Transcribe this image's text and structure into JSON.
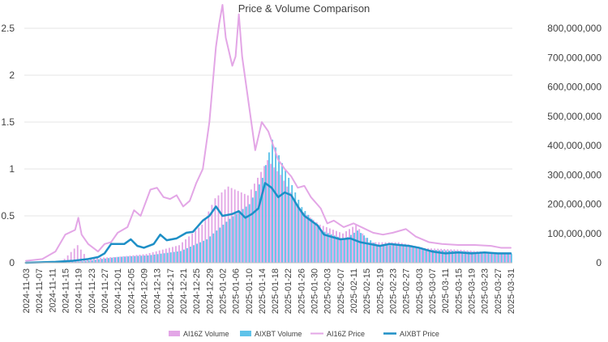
{
  "chart_data": {
    "type": "bar+line",
    "title": "Price & Volume Comparison",
    "xlabel": "",
    "ylabel_left": "",
    "ylabel_right": "",
    "ylim_left": [
      0,
      2.5
    ],
    "yticks_left": [
      "0",
      "0.5",
      "1",
      "1.5",
      "2",
      "2.5"
    ],
    "ylim_right": [
      0,
      800000000
    ],
    "yticks_right": [
      "0",
      "100,000,000",
      "200,000,000",
      "300,000,000",
      "400,000,000",
      "500,000,000",
      "600,000,000",
      "700,000,000",
      "800,000,000"
    ],
    "x_start": "2024-11-03",
    "x_end": "2025-03-31",
    "x_ticks": [
      "2024-11-03",
      "2024-11-07",
      "2024-11-11",
      "2024-11-15",
      "2024-11-19",
      "2024-11-23",
      "2024-11-27",
      "2024-12-01",
      "2024-12-05",
      "2024-12-09",
      "2024-12-13",
      "2024-12-17",
      "2024-12-21",
      "2024-12-25",
      "2024-12-29",
      "2025-01-02",
      "2025-01-06",
      "2025-01-10",
      "2025-01-14",
      "2025-01-18",
      "2025-01-22",
      "2025-01-26",
      "2025-01-30",
      "2025-02-03",
      "2025-02-07",
      "2025-02-11",
      "2025-02-15",
      "2025-02-19",
      "2025-02-23",
      "2025-02-27",
      "2025-03-03",
      "2025-03-07",
      "2025-03-11",
      "2025-03-15",
      "2025-03-19",
      "2025-03-23",
      "2025-03-27",
      "2025-03-31"
    ],
    "grid": true,
    "legend_position": "bottom",
    "series": [
      {
        "name": "AI16Z Volume",
        "kind": "bar",
        "axis": "right",
        "color": "#e3a6e6",
        "anchors": [
          [
            "2024-11-03",
            0
          ],
          [
            "2024-11-14",
            2000000
          ],
          [
            "2024-11-19",
            60000000
          ],
          [
            "2024-11-22",
            15000000
          ],
          [
            "2024-12-01",
            20000000
          ],
          [
            "2024-12-10",
            30000000
          ],
          [
            "2024-12-20",
            60000000
          ],
          [
            "2024-12-27",
            130000000
          ],
          [
            "2024-12-31",
            220000000
          ],
          [
            "2025-01-04",
            260000000
          ],
          [
            "2025-01-10",
            230000000
          ],
          [
            "2025-01-16",
            350000000
          ],
          [
            "2025-01-20",
            300000000
          ],
          [
            "2025-01-26",
            180000000
          ],
          [
            "2025-02-01",
            130000000
          ],
          [
            "2025-02-08",
            100000000
          ],
          [
            "2025-02-12",
            130000000
          ],
          [
            "2025-02-16",
            70000000
          ],
          [
            "2025-02-25",
            70000000
          ],
          [
            "2025-03-05",
            50000000
          ],
          [
            "2025-03-15",
            45000000
          ],
          [
            "2025-03-31",
            30000000
          ]
        ]
      },
      {
        "name": "AIXBT Volume",
        "kind": "bar",
        "axis": "right",
        "color": "#5fc3e9",
        "anchors": [
          [
            "2024-11-03",
            0
          ],
          [
            "2024-11-20",
            5000000
          ],
          [
            "2024-12-01",
            20000000
          ],
          [
            "2024-12-10",
            25000000
          ],
          [
            "2024-12-20",
            40000000
          ],
          [
            "2024-12-28",
            80000000
          ],
          [
            "2025-01-04",
            150000000
          ],
          [
            "2025-01-10",
            200000000
          ],
          [
            "2025-01-14",
            290000000
          ],
          [
            "2025-01-17",
            420000000
          ],
          [
            "2025-01-20",
            340000000
          ],
          [
            "2025-01-26",
            190000000
          ],
          [
            "2025-02-01",
            110000000
          ],
          [
            "2025-02-08",
            80000000
          ],
          [
            "2025-02-12",
            110000000
          ],
          [
            "2025-02-18",
            60000000
          ],
          [
            "2025-02-25",
            60000000
          ],
          [
            "2025-03-05",
            45000000
          ],
          [
            "2025-03-15",
            40000000
          ],
          [
            "2025-03-31",
            30000000
          ]
        ]
      },
      {
        "name": "AI16Z Price",
        "kind": "line",
        "axis": "left",
        "color": "#e3a6e6",
        "points": [
          [
            "2024-11-03",
            0.02
          ],
          [
            "2024-11-08",
            0.04
          ],
          [
            "2024-11-12",
            0.12
          ],
          [
            "2024-11-15",
            0.3
          ],
          [
            "2024-11-18",
            0.35
          ],
          [
            "2024-11-19",
            0.48
          ],
          [
            "2024-11-20",
            0.3
          ],
          [
            "2024-11-22",
            0.2
          ],
          [
            "2024-11-25",
            0.12
          ],
          [
            "2024-11-27",
            0.2
          ],
          [
            "2024-11-29",
            0.22
          ],
          [
            "2024-12-01",
            0.32
          ],
          [
            "2024-12-04",
            0.38
          ],
          [
            "2024-12-06",
            0.56
          ],
          [
            "2024-12-08",
            0.5
          ],
          [
            "2024-12-11",
            0.78
          ],
          [
            "2024-12-13",
            0.8
          ],
          [
            "2024-12-15",
            0.7
          ],
          [
            "2024-12-17",
            0.68
          ],
          [
            "2024-12-19",
            0.72
          ],
          [
            "2024-12-21",
            0.6
          ],
          [
            "2024-12-23",
            0.66
          ],
          [
            "2024-12-25",
            0.85
          ],
          [
            "2024-12-27",
            1.0
          ],
          [
            "2024-12-29",
            1.5
          ],
          [
            "2024-12-31",
            2.3
          ],
          [
            "2025-01-01",
            2.55
          ],
          [
            "2025-01-02",
            2.75
          ],
          [
            "2025-01-03",
            2.4
          ],
          [
            "2025-01-05",
            2.1
          ],
          [
            "2025-01-06",
            2.2
          ],
          [
            "2025-01-07",
            2.65
          ],
          [
            "2025-01-08",
            2.2
          ],
          [
            "2025-01-10",
            1.7
          ],
          [
            "2025-01-12",
            1.2
          ],
          [
            "2025-01-14",
            1.5
          ],
          [
            "2025-01-16",
            1.4
          ],
          [
            "2025-01-18",
            1.2
          ],
          [
            "2025-01-19",
            1.1
          ],
          [
            "2025-01-21",
            1.0
          ],
          [
            "2025-01-23",
            0.92
          ],
          [
            "2025-01-25",
            0.8
          ],
          [
            "2025-01-27",
            0.82
          ],
          [
            "2025-01-29",
            0.7
          ],
          [
            "2025-02-01",
            0.58
          ],
          [
            "2025-02-03",
            0.42
          ],
          [
            "2025-02-05",
            0.45
          ],
          [
            "2025-02-08",
            0.38
          ],
          [
            "2025-02-11",
            0.42
          ],
          [
            "2025-02-14",
            0.37
          ],
          [
            "2025-02-17",
            0.32
          ],
          [
            "2025-02-20",
            0.3
          ],
          [
            "2025-02-23",
            0.32
          ],
          [
            "2025-02-27",
            0.36
          ],
          [
            "2025-03-02",
            0.28
          ],
          [
            "2025-03-06",
            0.22
          ],
          [
            "2025-03-10",
            0.2
          ],
          [
            "2025-03-15",
            0.19
          ],
          [
            "2025-03-20",
            0.19
          ],
          [
            "2025-03-25",
            0.18
          ],
          [
            "2025-03-28",
            0.16
          ],
          [
            "2025-03-31",
            0.16
          ]
        ]
      },
      {
        "name": "AIXBT Price",
        "kind": "line",
        "axis": "left",
        "color": "#1e8fc6",
        "points": [
          [
            "2024-11-03",
            0.0
          ],
          [
            "2024-11-12",
            0.01
          ],
          [
            "2024-11-17",
            0.02
          ],
          [
            "2024-11-22",
            0.04
          ],
          [
            "2024-11-25",
            0.06
          ],
          [
            "2024-11-27",
            0.1
          ],
          [
            "2024-11-29",
            0.2
          ],
          [
            "2024-12-03",
            0.2
          ],
          [
            "2024-12-05",
            0.25
          ],
          [
            "2024-12-07",
            0.18
          ],
          [
            "2024-12-09",
            0.16
          ],
          [
            "2024-12-12",
            0.2
          ],
          [
            "2024-12-14",
            0.3
          ],
          [
            "2024-12-16",
            0.24
          ],
          [
            "2024-12-19",
            0.26
          ],
          [
            "2024-12-22",
            0.32
          ],
          [
            "2024-12-24",
            0.33
          ],
          [
            "2024-12-27",
            0.45
          ],
          [
            "2024-12-29",
            0.5
          ],
          [
            "2024-12-31",
            0.6
          ],
          [
            "2025-01-02",
            0.5
          ],
          [
            "2025-01-05",
            0.52
          ],
          [
            "2025-01-07",
            0.55
          ],
          [
            "2025-01-09",
            0.48
          ],
          [
            "2025-01-11",
            0.52
          ],
          [
            "2025-01-13",
            0.58
          ],
          [
            "2025-01-15",
            0.85
          ],
          [
            "2025-01-17",
            0.8
          ],
          [
            "2025-01-19",
            0.7
          ],
          [
            "2025-01-21",
            0.75
          ],
          [
            "2025-01-23",
            0.72
          ],
          [
            "2025-01-25",
            0.6
          ],
          [
            "2025-01-27",
            0.5
          ],
          [
            "2025-01-29",
            0.45
          ],
          [
            "2025-01-31",
            0.4
          ],
          [
            "2025-02-02",
            0.3
          ],
          [
            "2025-02-04",
            0.28
          ],
          [
            "2025-02-07",
            0.25
          ],
          [
            "2025-02-10",
            0.26
          ],
          [
            "2025-02-13",
            0.22
          ],
          [
            "2025-02-16",
            0.2
          ],
          [
            "2025-02-19",
            0.18
          ],
          [
            "2025-02-22",
            0.2
          ],
          [
            "2025-02-25",
            0.19
          ],
          [
            "2025-02-28",
            0.18
          ],
          [
            "2025-03-03",
            0.16
          ],
          [
            "2025-03-07",
            0.12
          ],
          [
            "2025-03-11",
            0.1
          ],
          [
            "2025-03-15",
            0.11
          ],
          [
            "2025-03-19",
            0.1
          ],
          [
            "2025-03-23",
            0.11
          ],
          [
            "2025-03-27",
            0.1
          ],
          [
            "2025-03-31",
            0.1
          ]
        ]
      }
    ]
  }
}
